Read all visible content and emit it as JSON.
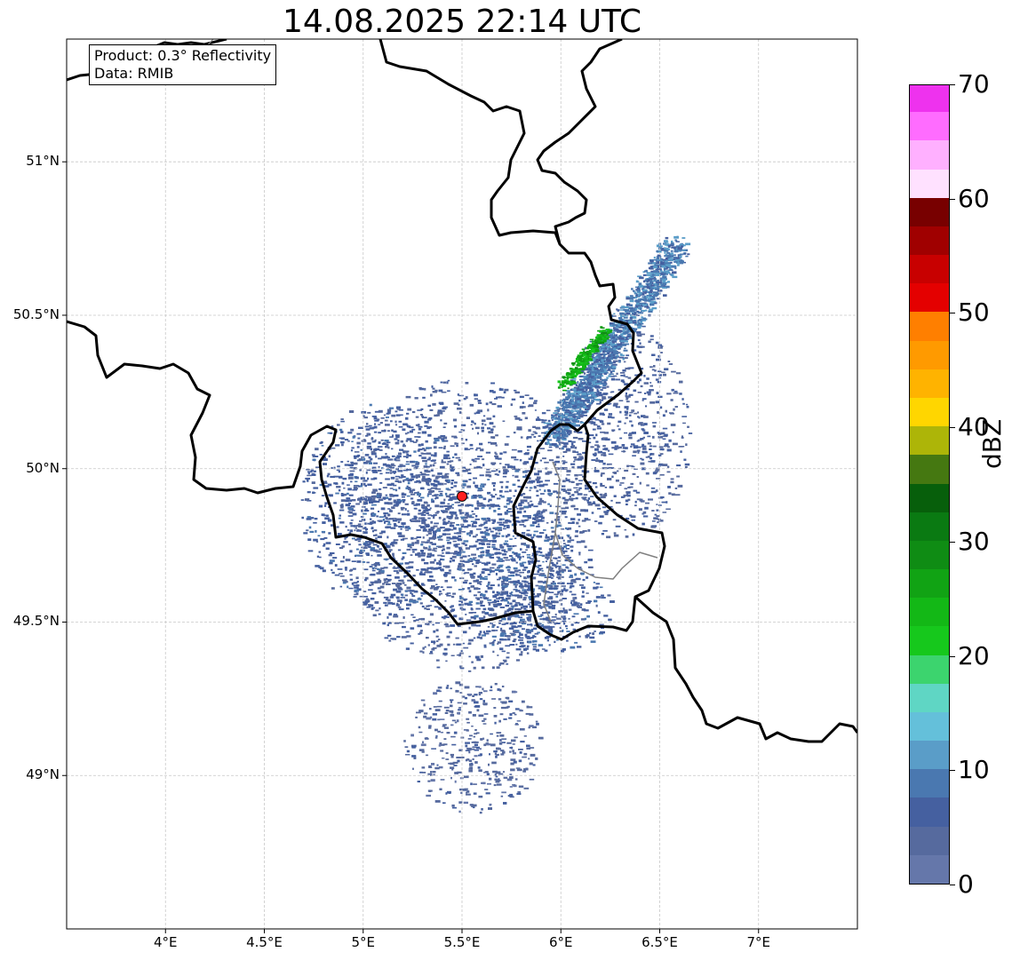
{
  "title": "14.08.2025 22:14 UTC",
  "info": {
    "product": "Product: 0.3° Reflectivity",
    "data": "Data: RMIB"
  },
  "map": {
    "lon_ticks": [
      "4°E",
      "4.5°E",
      "5°E",
      "5.5°E",
      "6°E",
      "6.5°E",
      "7°E"
    ],
    "lat_ticks": [
      "51°N",
      "50.5°N",
      "50°N",
      "49.5°N",
      "49°N"
    ],
    "extent": {
      "lon": [
        3.5,
        7.5
      ],
      "lat": [
        48.5,
        51.4
      ]
    },
    "radar_site": {
      "lon": 5.5,
      "lat": 49.91,
      "color": "#ff2020"
    },
    "gridlines": true
  },
  "colorbar": {
    "label": "dBZ",
    "tick_labels": [
      "0",
      "10",
      "20",
      "30",
      "40",
      "50",
      "60",
      "70"
    ],
    "min": 0,
    "max": 70,
    "step": 2.5,
    "colors": [
      "#6577aa",
      "#566a9e",
      "#4560a0",
      "#4a78b0",
      "#5a9dc8",
      "#64c0da",
      "#5fd6c4",
      "#3cd46e",
      "#16c81c",
      "#13b816",
      "#11a314",
      "#0f8c14",
      "#0a7a12",
      "#075f0b",
      "#457811",
      "#adb508",
      "#ffd600",
      "#ffb300",
      "#ff9a00",
      "#ff7f00",
      "#e40000",
      "#c80000",
      "#a00000",
      "#780000",
      "#ffe1ff",
      "#ffb0ff",
      "#ff6cff",
      "#ee32ee"
    ]
  },
  "chart_data": {
    "type": "heatmap",
    "title": "14.08.2025 22:14 UTC",
    "xlabel": "",
    "ylabel": "",
    "xlim": [
      3.5,
      7.5
    ],
    "ylim": [
      48.5,
      51.4
    ],
    "colorbar_label": "dBZ",
    "clim": [
      0,
      70
    ],
    "echo_regions": [
      {
        "lon": 5.52,
        "lat": 49.82,
        "r_lon": 0.65,
        "r_lat": 0.48,
        "dbz": 3
      },
      {
        "lon": 5.1,
        "lat": 49.88,
        "r_lon": 0.42,
        "r_lat": 0.34,
        "dbz": 4
      },
      {
        "lon": 5.75,
        "lat": 49.7,
        "r_lon": 0.3,
        "r_lat": 0.3,
        "dbz": 5
      },
      {
        "lon": 5.95,
        "lat": 49.55,
        "r_lon": 0.3,
        "r_lat": 0.15,
        "dbz": 4
      },
      {
        "lon": 6.3,
        "lat": 50.12,
        "r_lon": 0.35,
        "r_lat": 0.35,
        "dbz": 3
      },
      {
        "lon": 5.55,
        "lat": 49.1,
        "r_lon": 0.35,
        "r_lat": 0.22,
        "dbz": 2
      }
    ],
    "band": {
      "lon1": 5.95,
      "lat1": 50.1,
      "lon2": 6.58,
      "lat2": 50.73,
      "dbz": 6
    },
    "band_core": {
      "lon1": 6.0,
      "lat1": 50.27,
      "lon2": 6.22,
      "lat2": 50.45,
      "dbz": 22
    }
  }
}
